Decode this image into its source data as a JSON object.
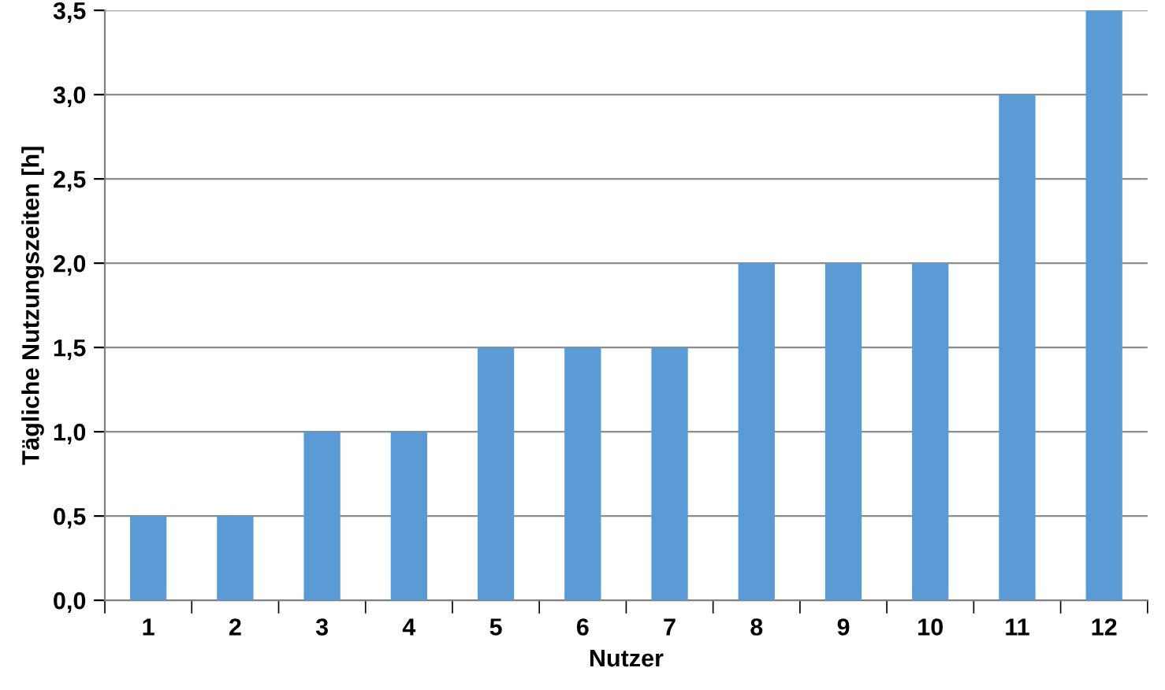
{
  "chart_data": {
    "type": "bar",
    "xlabel": "Nutzer",
    "ylabel": "Tägliche Nutzungszeiten [h]",
    "categories": [
      "1",
      "2",
      "3",
      "4",
      "5",
      "6",
      "7",
      "8",
      "9",
      "10",
      "11",
      "12"
    ],
    "values": [
      0.5,
      0.5,
      1.0,
      1.0,
      1.5,
      1.5,
      1.5,
      2.0,
      2.0,
      2.0,
      3.0,
      3.5
    ],
    "color": "#5b9bd5",
    "ylim": [
      0,
      3.5
    ],
    "yticks": [
      {
        "value": 0,
        "label": "0,0"
      },
      {
        "value": 0.5,
        "label": "0,5"
      },
      {
        "value": 1,
        "label": "1,0"
      },
      {
        "value": 1.5,
        "label": "1,5"
      },
      {
        "value": 2,
        "label": "2,0"
      },
      {
        "value": 2.5,
        "label": "2,5"
      },
      {
        "value": 3,
        "label": "3,0"
      },
      {
        "value": 3.5,
        "label": "3,5"
      }
    ],
    "grid": "y"
  }
}
